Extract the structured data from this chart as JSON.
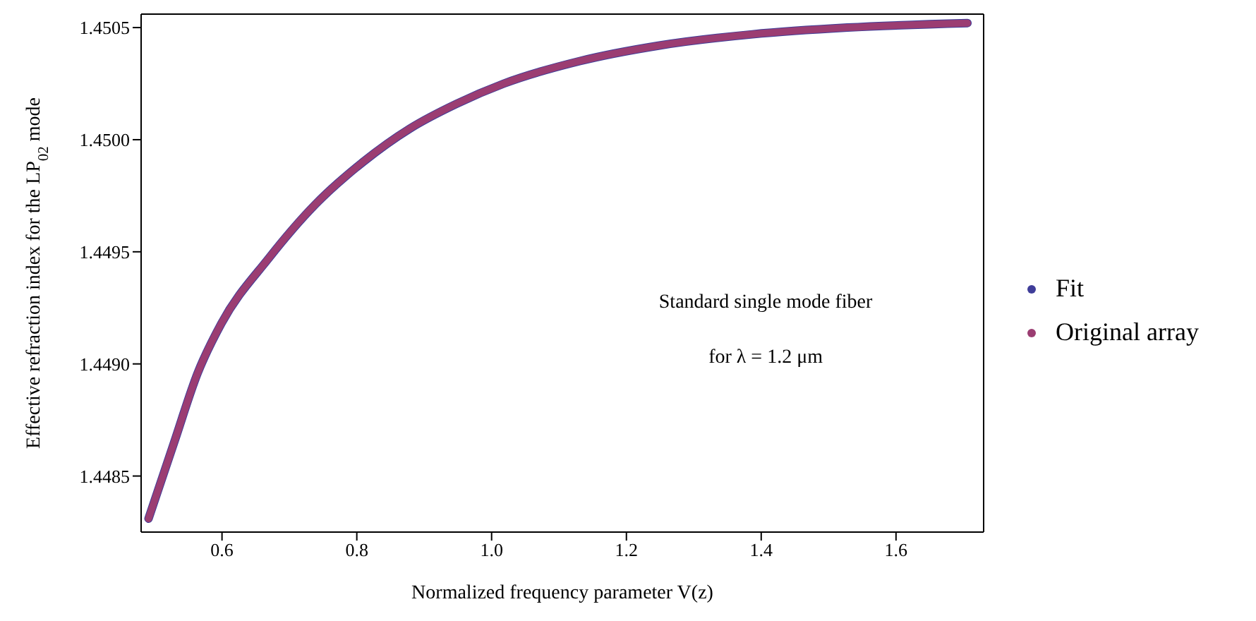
{
  "chart_data": {
    "type": "line",
    "xlabel": "Normalized frequency parameter V(z)",
    "ylabel": "Effective refraction index for the LP$_{02}$ mode",
    "x": [
      0.491,
      0.529,
      0.564,
      0.599,
      0.669,
      0.738,
      0.809,
      0.879,
      0.948,
      1.018,
      1.13,
      1.249,
      1.387,
      1.528,
      1.706
    ],
    "series": [
      {
        "name": "Fit",
        "color": "#3f3d99",
        "values": [
          1.44831,
          1.44865,
          1.44896,
          1.44918,
          1.44947,
          1.44971,
          1.4499,
          1.45005,
          1.45016,
          1.45025,
          1.45035,
          1.45042,
          1.45047,
          1.4505,
          1.45052
        ]
      },
      {
        "name": "Original array",
        "color": "#9b3d72",
        "values": [
          1.44831,
          1.44865,
          1.44896,
          1.44918,
          1.44947,
          1.44971,
          1.4499,
          1.45005,
          1.45016,
          1.45025,
          1.45035,
          1.45042,
          1.45047,
          1.4505,
          1.45052
        ]
      }
    ],
    "xlim": [
      0.48,
      1.73
    ],
    "ylim": [
      1.44825,
      1.45056
    ],
    "xticks": [
      0.6,
      0.8,
      {
        "value": 1,
        "label": "1.0"
      },
      1.2,
      1.4,
      1.6
    ],
    "yticks": [
      {
        "value": 1.4485,
        "label": "1.4485"
      },
      {
        "value": 1.449,
        "label": "1.4490"
      },
      {
        "value": 1.4495,
        "label": "1.4495"
      },
      {
        "value": 1.45,
        "label": "1.4500"
      },
      {
        "value": 1.4505,
        "label": "1.4505"
      }
    ],
    "annotations": [
      "Standard single mode fiber",
      "for λ = 1.2 μm"
    ],
    "legend": "right",
    "grid": false,
    "marker": "none",
    "line_style": "solid"
  }
}
